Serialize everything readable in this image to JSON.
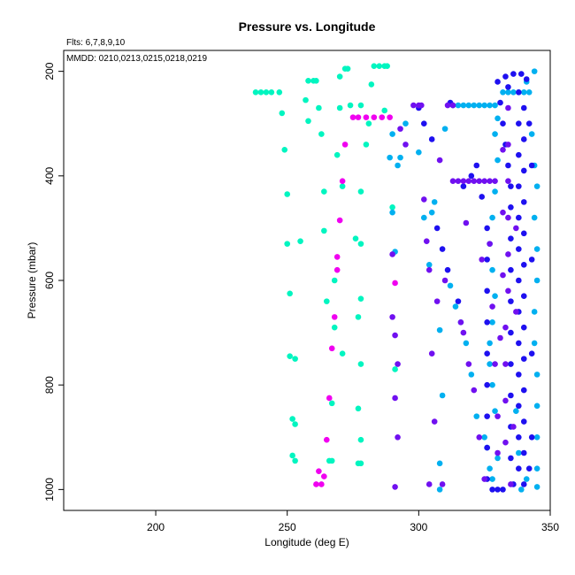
{
  "chart_data": {
    "type": "scatter",
    "title": "Pressure vs. Longitude",
    "xlabel": "Longitude (deg E)",
    "ylabel": "Pressure (mbar)",
    "annotations": [
      "Flts: 6,7,8,9,10",
      "MMDD: 0210,0213,0215,0218,0219"
    ],
    "xlim": [
      165,
      350
    ],
    "ylim": [
      1040,
      160
    ],
    "x_reversed": false,
    "y_reversed": true,
    "x_ticks": [
      200,
      250,
      300,
      350
    ],
    "y_ticks": [
      200,
      400,
      600,
      800,
      1000
    ],
    "grid": false,
    "legend": "none",
    "series": [
      {
        "color": "#00F5C0",
        "points": [
          [
            238,
            240
          ],
          [
            240,
            240
          ],
          [
            242,
            240
          ],
          [
            244,
            240
          ],
          [
            247,
            240
          ],
          [
            248,
            280
          ],
          [
            249,
            350
          ],
          [
            250,
            435
          ],
          [
            250,
            530
          ],
          [
            251,
            625
          ],
          [
            251,
            745
          ],
          [
            253,
            750
          ],
          [
            252,
            865
          ],
          [
            253,
            875
          ],
          [
            252,
            935
          ],
          [
            253,
            945
          ],
          [
            255,
            525
          ],
          [
            257,
            255
          ],
          [
            258,
            295
          ],
          [
            258,
            218
          ],
          [
            260,
            218
          ],
          [
            261,
            218
          ],
          [
            262,
            270
          ],
          [
            263,
            320
          ],
          [
            264,
            430
          ],
          [
            264,
            505
          ],
          [
            265,
            640
          ],
          [
            266,
            945
          ],
          [
            267,
            945
          ],
          [
            268,
            600
          ],
          [
            268,
            690
          ],
          [
            267,
            835
          ],
          [
            269,
            360
          ],
          [
            270,
            270
          ],
          [
            270,
            210
          ],
          [
            272,
            195
          ],
          [
            273,
            195
          ],
          [
            271,
            420
          ],
          [
            271,
            740
          ],
          [
            274,
            265
          ],
          [
            276,
            520
          ],
          [
            277,
            670
          ],
          [
            277,
            845
          ],
          [
            277,
            950
          ],
          [
            278,
            950
          ],
          [
            278,
            265
          ],
          [
            278,
            905
          ],
          [
            278,
            430
          ],
          [
            278,
            530
          ],
          [
            278,
            635
          ],
          [
            278,
            760
          ],
          [
            280,
            340
          ],
          [
            281,
            300
          ],
          [
            282,
            225
          ],
          [
            283,
            190
          ],
          [
            285,
            190
          ],
          [
            287,
            190
          ],
          [
            288,
            190
          ],
          [
            287,
            275
          ],
          [
            290,
            460
          ],
          [
            291,
            770
          ]
        ]
      },
      {
        "color": "#F000F0",
        "points": [
          [
            261,
            990
          ],
          [
            262,
            965
          ],
          [
            263,
            990
          ],
          [
            264,
            975
          ],
          [
            265,
            905
          ],
          [
            266,
            825
          ],
          [
            267,
            730
          ],
          [
            268,
            670
          ],
          [
            269,
            580
          ],
          [
            269,
            555
          ],
          [
            270,
            485
          ],
          [
            271,
            410
          ],
          [
            272,
            340
          ],
          [
            275,
            288
          ],
          [
            277,
            288
          ],
          [
            280,
            288
          ],
          [
            283,
            288
          ],
          [
            286,
            288
          ],
          [
            289,
            288
          ],
          [
            291,
            605
          ]
        ]
      },
      {
        "color": "#00B0F0",
        "points": [
          [
            289,
            365
          ],
          [
            290,
            320
          ],
          [
            290,
            470
          ],
          [
            291,
            545
          ],
          [
            292,
            380
          ],
          [
            293,
            365
          ],
          [
            295,
            300
          ],
          [
            300,
            355
          ],
          [
            302,
            480
          ],
          [
            304,
            570
          ],
          [
            305,
            470
          ],
          [
            306,
            450
          ],
          [
            308,
            695
          ],
          [
            309,
            820
          ],
          [
            308,
            950
          ],
          [
            308,
            1000
          ],
          [
            310,
            310
          ],
          [
            313,
            265
          ],
          [
            315,
            265
          ],
          [
            317,
            265
          ],
          [
            319,
            265
          ],
          [
            321,
            265
          ],
          [
            323,
            265
          ],
          [
            325,
            265
          ],
          [
            327,
            265
          ],
          [
            329,
            265
          ],
          [
            312,
            610
          ],
          [
            314,
            650
          ],
          [
            316,
            680
          ],
          [
            318,
            720
          ],
          [
            320,
            780
          ],
          [
            322,
            860
          ],
          [
            325,
            900
          ],
          [
            326,
            920
          ],
          [
            327,
            960
          ],
          [
            328,
            980
          ],
          [
            330,
            940
          ],
          [
            329,
            850
          ],
          [
            328,
            800
          ],
          [
            327,
            760
          ],
          [
            327,
            720
          ],
          [
            328,
            680
          ],
          [
            329,
            630
          ],
          [
            328,
            580
          ],
          [
            327,
            530
          ],
          [
            328,
            480
          ],
          [
            329,
            430
          ],
          [
            330,
            370
          ],
          [
            329,
            320
          ],
          [
            330,
            290
          ],
          [
            332,
            240
          ],
          [
            334,
            240
          ],
          [
            336,
            240
          ],
          [
            338,
            240
          ],
          [
            340,
            240
          ],
          [
            342,
            240
          ],
          [
            344,
            200
          ],
          [
            341,
            220
          ],
          [
            343,
            320
          ],
          [
            344,
            380
          ],
          [
            345,
            420
          ],
          [
            344,
            480
          ],
          [
            345,
            540
          ],
          [
            345,
            600
          ],
          [
            344,
            660
          ],
          [
            344,
            720
          ],
          [
            345,
            780
          ],
          [
            345,
            840
          ],
          [
            345,
            900
          ],
          [
            345,
            960
          ],
          [
            345,
            995
          ],
          [
            337,
            850
          ],
          [
            338,
            930
          ],
          [
            339,
            1000
          ],
          [
            341,
            980
          ]
        ]
      },
      {
        "color": "#1E10F0",
        "points": [
          [
            300,
            270
          ],
          [
            302,
            300
          ],
          [
            305,
            330
          ],
          [
            307,
            500
          ],
          [
            309,
            540
          ],
          [
            311,
            580
          ],
          [
            312,
            260
          ],
          [
            315,
            640
          ],
          [
            317,
            420
          ],
          [
            320,
            400
          ],
          [
            322,
            380
          ],
          [
            324,
            440
          ],
          [
            326,
            500
          ],
          [
            326,
            560
          ],
          [
            326,
            620
          ],
          [
            326,
            680
          ],
          [
            326,
            740
          ],
          [
            326,
            800
          ],
          [
            326,
            860
          ],
          [
            326,
            920
          ],
          [
            326,
            980
          ],
          [
            328,
            1000
          ],
          [
            330,
            1000
          ],
          [
            332,
            1000
          ],
          [
            330,
            220
          ],
          [
            331,
            260
          ],
          [
            332,
            300
          ],
          [
            333,
            340
          ],
          [
            334,
            380
          ],
          [
            335,
            420
          ],
          [
            335,
            460
          ],
          [
            335,
            520
          ],
          [
            335,
            580
          ],
          [
            335,
            640
          ],
          [
            335,
            700
          ],
          [
            335,
            760
          ],
          [
            335,
            820
          ],
          [
            335,
            880
          ],
          [
            335,
            940
          ],
          [
            336,
            990
          ],
          [
            338,
            960
          ],
          [
            338,
            900
          ],
          [
            338,
            840
          ],
          [
            338,
            780
          ],
          [
            338,
            720
          ],
          [
            338,
            660
          ],
          [
            338,
            600
          ],
          [
            338,
            540
          ],
          [
            338,
            480
          ],
          [
            338,
            420
          ],
          [
            338,
            360
          ],
          [
            338,
            300
          ],
          [
            338,
            240
          ],
          [
            340,
            270
          ],
          [
            340,
            330
          ],
          [
            340,
            390
          ],
          [
            340,
            450
          ],
          [
            340,
            510
          ],
          [
            340,
            570
          ],
          [
            340,
            630
          ],
          [
            340,
            690
          ],
          [
            340,
            750
          ],
          [
            340,
            810
          ],
          [
            340,
            870
          ],
          [
            340,
            930
          ],
          [
            340,
            990
          ],
          [
            342,
            960
          ],
          [
            342,
            300
          ],
          [
            343,
            380
          ],
          [
            343,
            560
          ],
          [
            343,
            740
          ],
          [
            343,
            900
          ],
          [
            333,
            210
          ],
          [
            334,
            230
          ],
          [
            336,
            205
          ],
          [
            339,
            205
          ],
          [
            341,
            215
          ]
        ]
      },
      {
        "color": "#7010F0",
        "points": [
          [
            290,
            550
          ],
          [
            290,
            670
          ],
          [
            291,
            705
          ],
          [
            292,
            760
          ],
          [
            291,
            825
          ],
          [
            292,
            900
          ],
          [
            291,
            995
          ],
          [
            293,
            310
          ],
          [
            295,
            340
          ],
          [
            298,
            265
          ],
          [
            300,
            265
          ],
          [
            301,
            265
          ],
          [
            302,
            445
          ],
          [
            303,
            525
          ],
          [
            304,
            580
          ],
          [
            304,
            990
          ],
          [
            305,
            740
          ],
          [
            306,
            870
          ],
          [
            307,
            640
          ],
          [
            308,
            370
          ],
          [
            309,
            990
          ],
          [
            310,
            600
          ],
          [
            311,
            265
          ],
          [
            313,
            265
          ],
          [
            313,
            410
          ],
          [
            315,
            410
          ],
          [
            317,
            410
          ],
          [
            319,
            410
          ],
          [
            321,
            410
          ],
          [
            323,
            410
          ],
          [
            325,
            410
          ],
          [
            327,
            410
          ],
          [
            329,
            410
          ],
          [
            316,
            680
          ],
          [
            317,
            700
          ],
          [
            318,
            490
          ],
          [
            319,
            760
          ],
          [
            321,
            810
          ],
          [
            323,
            900
          ],
          [
            324,
            560
          ],
          [
            325,
            980
          ],
          [
            327,
            530
          ],
          [
            328,
            650
          ],
          [
            329,
            760
          ],
          [
            330,
            860
          ],
          [
            330,
            930
          ],
          [
            331,
            710
          ],
          [
            332,
            590
          ],
          [
            332,
            470
          ],
          [
            332,
            350
          ],
          [
            333,
            910
          ],
          [
            333,
            830
          ],
          [
            333,
            760
          ],
          [
            333,
            690
          ],
          [
            334,
            620
          ],
          [
            334,
            550
          ],
          [
            334,
            480
          ],
          [
            334,
            410
          ],
          [
            334,
            340
          ],
          [
            334,
            270
          ],
          [
            335,
            990
          ],
          [
            336,
            880
          ],
          [
            337,
            660
          ],
          [
            337,
            500
          ]
        ]
      }
    ]
  }
}
